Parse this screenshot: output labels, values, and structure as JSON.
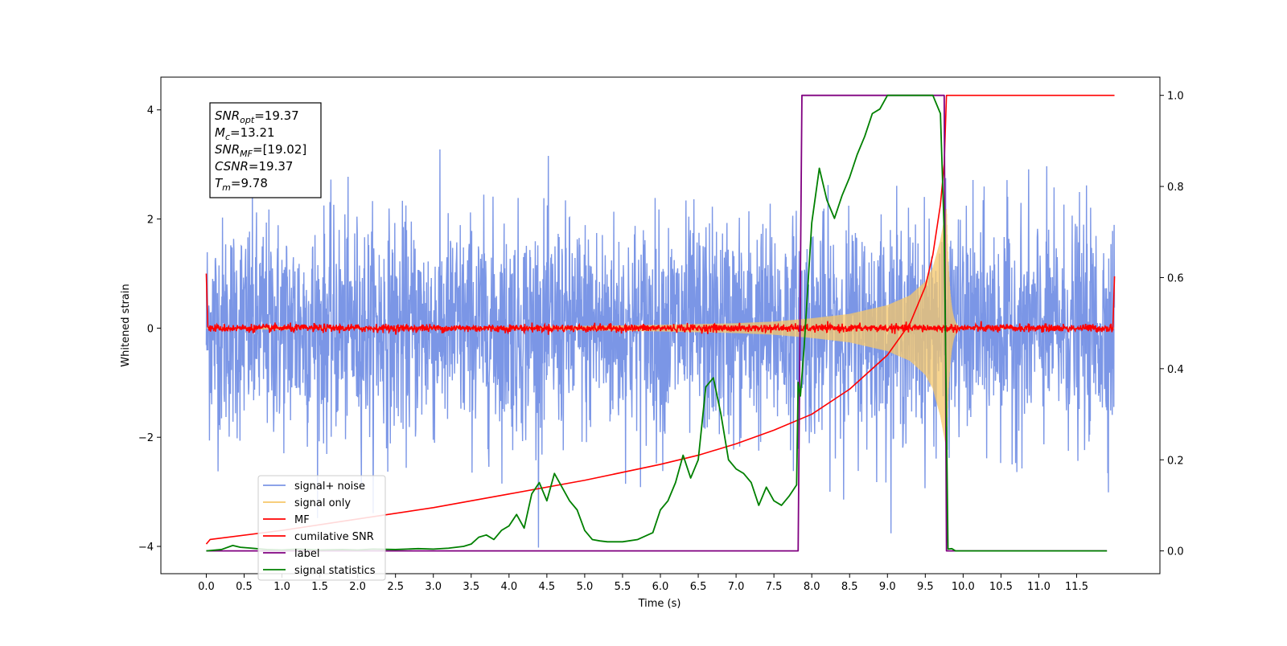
{
  "chart_data": {
    "type": "line",
    "xlabel": "Time (s)",
    "ylabel": "Whitened strain",
    "ylabel_right": "",
    "xlim": [
      -0.6,
      12.6
    ],
    "ylim": [
      -4.5,
      4.6
    ],
    "ylim_right": [
      -0.05,
      1.04
    ],
    "x_ticks": [
      0.0,
      0.5,
      1.0,
      1.5,
      2.0,
      2.5,
      3.0,
      3.5,
      4.0,
      4.5,
      5.0,
      5.5,
      6.0,
      6.5,
      7.0,
      7.5,
      8.0,
      8.5,
      9.0,
      9.5,
      10.0,
      10.5,
      11.0,
      11.5
    ],
    "x_tick_labels": [
      "0.0",
      "0.5",
      "1.0",
      "1.5",
      "2.0",
      "2.5",
      "3.0",
      "3.5",
      "4.0",
      "4.5",
      "5.0",
      "5.5",
      "6.0",
      "6.5",
      "7.0",
      "7.5",
      "8.0",
      "8.5",
      "9.0",
      "9.5",
      "10.0",
      "10.5",
      "11.0",
      "11.5"
    ],
    "y_ticks_left": [
      -4,
      -2,
      0,
      2,
      4
    ],
    "y_tick_labels_left": [
      "−4",
      "−2",
      "0",
      "2",
      "4"
    ],
    "y_ticks_right": [
      0.0,
      0.2,
      0.4,
      0.6,
      0.8,
      1.0
    ],
    "y_tick_labels_right": [
      "0.0",
      "0.2",
      "0.4",
      "0.6",
      "0.8",
      "1.0"
    ],
    "grid": false,
    "legend_position": "lower-left",
    "annotation": {
      "position": "top-left",
      "lines": [
        {
          "sym": "SNR",
          "sub": "opt",
          "value": "=19.37"
        },
        {
          "sym": "M",
          "sub": "c",
          "value": "=13.21"
        },
        {
          "sym": "SNR",
          "sub": "MF",
          "value": "=[19.02]"
        },
        {
          "sym": "CSNR",
          "sub": "",
          "value": "=19.37"
        },
        {
          "sym": "T",
          "sub": "m",
          "value": "=9.78"
        }
      ]
    },
    "series": [
      {
        "name": "signal+ noise",
        "axis": "left",
        "color": "#7b96e6",
        "kind": "noise",
        "x_range": [
          0,
          12
        ],
        "amplitude_typical": 1.0,
        "peak_max": 3.7,
        "trough_min": -4.15
      },
      {
        "name": "signal only",
        "axis": "left",
        "color": "#f6c76a",
        "kind": "chirp",
        "x_range": [
          0,
          12
        ],
        "merger_time": 9.78,
        "envelope": {
          "x": [
            0.0,
            4.0,
            6.0,
            7.0,
            7.5,
            8.0,
            8.5,
            9.0,
            9.3,
            9.5,
            9.6,
            9.7,
            9.78
          ],
          "y": [
            0.0,
            0.02,
            0.06,
            0.09,
            0.12,
            0.18,
            0.26,
            0.42,
            0.6,
            0.85,
            1.1,
            1.6,
            2.2
          ]
        }
      },
      {
        "name": "MF",
        "axis": "left",
        "color": "#ff0000",
        "kind": "matched-filter",
        "x_range": [
          0,
          12
        ],
        "baseline": 0.0,
        "jitter": 0.08,
        "start_value": 1.0,
        "end_value": 0.95
      },
      {
        "name": "cumilative SNR",
        "axis": "right",
        "color": "#ff0000",
        "x": [
          0.0,
          0.05,
          1.0,
          2.0,
          3.0,
          4.0,
          5.0,
          6.0,
          6.5,
          7.0,
          7.5,
          8.0,
          8.5,
          9.0,
          9.3,
          9.5,
          9.6,
          9.7,
          9.75,
          9.78,
          9.8,
          12.0
        ],
        "y": [
          0.015,
          0.025,
          0.045,
          0.07,
          0.095,
          0.125,
          0.155,
          0.19,
          0.21,
          0.235,
          0.265,
          0.3,
          0.355,
          0.43,
          0.5,
          0.58,
          0.65,
          0.76,
          0.85,
          1.0,
          1.0,
          1.0
        ]
      },
      {
        "name": "label",
        "axis": "right",
        "color": "#800080",
        "x": [
          0.0,
          7.82,
          7.87,
          9.75,
          9.78,
          11.9
        ],
        "y": [
          0.0,
          0.0,
          1.0,
          1.0,
          0.0,
          0.0
        ]
      },
      {
        "name": "signal statistics",
        "axis": "right",
        "color": "#008000",
        "x": [
          0.0,
          0.2,
          0.35,
          0.45,
          0.6,
          0.8,
          1.0,
          1.2,
          1.5,
          1.8,
          2.0,
          2.2,
          2.5,
          2.8,
          3.0,
          3.2,
          3.4,
          3.5,
          3.6,
          3.7,
          3.8,
          3.9,
          4.0,
          4.1,
          4.2,
          4.3,
          4.4,
          4.5,
          4.6,
          4.7,
          4.8,
          4.9,
          5.0,
          5.1,
          5.2,
          5.3,
          5.5,
          5.7,
          5.9,
          6.0,
          6.1,
          6.2,
          6.3,
          6.4,
          6.5,
          6.6,
          6.7,
          6.8,
          6.9,
          7.0,
          7.1,
          7.2,
          7.3,
          7.4,
          7.5,
          7.6,
          7.7,
          7.8,
          7.82,
          7.85,
          7.9,
          8.0,
          8.1,
          8.2,
          8.3,
          8.4,
          8.5,
          8.6,
          8.7,
          8.8,
          8.9,
          9.0,
          9.2,
          9.4,
          9.6,
          9.7,
          9.75,
          9.8,
          9.85,
          9.9,
          10.0,
          10.5,
          11.0,
          11.9
        ],
        "y": [
          0.0,
          0.003,
          0.012,
          0.008,
          0.006,
          0.003,
          0.002,
          0.004,
          0.002,
          0.003,
          0.002,
          0.004,
          0.003,
          0.005,
          0.004,
          0.006,
          0.01,
          0.015,
          0.03,
          0.035,
          0.025,
          0.045,
          0.055,
          0.08,
          0.05,
          0.125,
          0.15,
          0.11,
          0.17,
          0.14,
          0.11,
          0.09,
          0.045,
          0.025,
          0.022,
          0.02,
          0.02,
          0.025,
          0.04,
          0.09,
          0.11,
          0.15,
          0.21,
          0.16,
          0.2,
          0.36,
          0.38,
          0.3,
          0.2,
          0.18,
          0.17,
          0.15,
          0.1,
          0.14,
          0.11,
          0.1,
          0.12,
          0.145,
          0.37,
          0.34,
          0.45,
          0.72,
          0.84,
          0.77,
          0.73,
          0.78,
          0.82,
          0.87,
          0.91,
          0.96,
          0.97,
          1.0,
          1.0,
          1.0,
          1.0,
          0.96,
          0.7,
          0.004,
          0.005,
          0.0,
          0.0,
          0.0,
          0.0,
          0.0
        ]
      }
    ]
  }
}
